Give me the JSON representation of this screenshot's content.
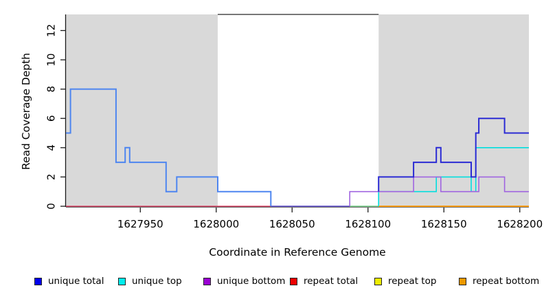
{
  "chart_data": {
    "type": "line",
    "subtype": "step-coverage-plot",
    "title": "",
    "xlabel": "Coordinate in Reference Genome",
    "ylabel": "Read Coverage Depth",
    "x_range": [
      1627901,
      1628206
    ],
    "y_range": [
      0,
      13.1
    ],
    "x_ticks": [
      1627950,
      1628000,
      1628050,
      1628100,
      1628150,
      1628200
    ],
    "y_ticks": [
      0,
      2,
      4,
      6,
      8,
      10,
      12
    ],
    "grid": false,
    "shaded_regions": [
      {
        "name": "left-repeat-region",
        "x0": 1627901,
        "x1": 1628001,
        "color": "#d9d9d9"
      },
      {
        "name": "right-repeat-region",
        "x0": 1628107,
        "x1": 1628206,
        "color": "#d9d9d9"
      }
    ],
    "top_gap_line": {
      "x0": 1628001,
      "x1": 1628107,
      "color": "#4a4a4a"
    },
    "series": [
      {
        "name": "repeat-total-baseline",
        "color": "#e0486a",
        "width": 1.6,
        "points": [
          [
            1627901,
            0
          ],
          [
            1628036,
            0
          ]
        ]
      },
      {
        "name": "zero-baseline-overlap-slate",
        "color": "#6a5acd",
        "width": 1.8,
        "points": [
          [
            1628036,
            0
          ],
          [
            1628088,
            0
          ]
        ]
      },
      {
        "name": "zero-baseline-overlap-green",
        "color": "#7fcf8f",
        "width": 1.8,
        "points": [
          [
            1628088,
            0
          ],
          [
            1628107,
            0
          ]
        ]
      },
      {
        "name": "repeat-bottom-baseline",
        "color": "#f79b12",
        "width": 2,
        "points": [
          [
            1628107,
            0
          ],
          [
            1628206,
            0
          ]
        ]
      },
      {
        "name": "unique-total-left-blend",
        "color": "#4d85f0",
        "width": 2,
        "points": [
          [
            1627901,
            5
          ],
          [
            1627904,
            5
          ],
          [
            1627904,
            8
          ],
          [
            1627934,
            8
          ],
          [
            1627934,
            3
          ],
          [
            1627940,
            3
          ],
          [
            1627940,
            4
          ],
          [
            1627943,
            4
          ],
          [
            1627943,
            3
          ],
          [
            1627967,
            3
          ],
          [
            1627967,
            1
          ],
          [
            1627974,
            1
          ],
          [
            1627974,
            2
          ],
          [
            1628001,
            2
          ],
          [
            1628001,
            1
          ],
          [
            1628036,
            1
          ],
          [
            1628036,
            0
          ]
        ]
      },
      {
        "name": "unique-top",
        "color": "#00dede",
        "width": 1.6,
        "points": [
          [
            1628107,
            0
          ],
          [
            1628107,
            1
          ],
          [
            1628145,
            1
          ],
          [
            1628145,
            2
          ],
          [
            1628168,
            2
          ],
          [
            1628168,
            1
          ],
          [
            1628171,
            1
          ],
          [
            1628171,
            4
          ],
          [
            1628206,
            4
          ]
        ]
      },
      {
        "name": "unique-bottom",
        "color": "#a064e0",
        "width": 1.6,
        "points": [
          [
            1628088,
            0
          ],
          [
            1628088,
            1
          ],
          [
            1628130,
            1
          ],
          [
            1628130,
            2
          ],
          [
            1628148,
            2
          ],
          [
            1628148,
            1
          ],
          [
            1628173,
            1
          ],
          [
            1628173,
            2
          ],
          [
            1628190,
            2
          ],
          [
            1628190,
            1
          ],
          [
            1628206,
            1
          ]
        ]
      },
      {
        "name": "unique-total-right",
        "color": "#2a2ad4",
        "width": 2,
        "points": [
          [
            1628107,
            1
          ],
          [
            1628107,
            2
          ],
          [
            1628130,
            2
          ],
          [
            1628130,
            3
          ],
          [
            1628145,
            3
          ],
          [
            1628145,
            4
          ],
          [
            1628148,
            4
          ],
          [
            1628148,
            3
          ],
          [
            1628168,
            3
          ],
          [
            1628168,
            2
          ],
          [
            1628171,
            2
          ],
          [
            1628171,
            5
          ],
          [
            1628173,
            5
          ],
          [
            1628173,
            6
          ],
          [
            1628190,
            6
          ],
          [
            1628190,
            5
          ],
          [
            1628206,
            5
          ]
        ]
      }
    ],
    "legend": {
      "position": "bottom",
      "items": [
        {
          "label": "unique total",
          "color": "#0000EE"
        },
        {
          "label": "unique top",
          "color": "#00EEEE"
        },
        {
          "label": "unique bottom",
          "color": "#9A00D3"
        },
        {
          "label": "repeat total",
          "color": "#EE0000"
        },
        {
          "label": "repeat top",
          "color": "#EEEE00"
        },
        {
          "label": "repeat bottom",
          "color": "#EE9900"
        }
      ]
    }
  }
}
